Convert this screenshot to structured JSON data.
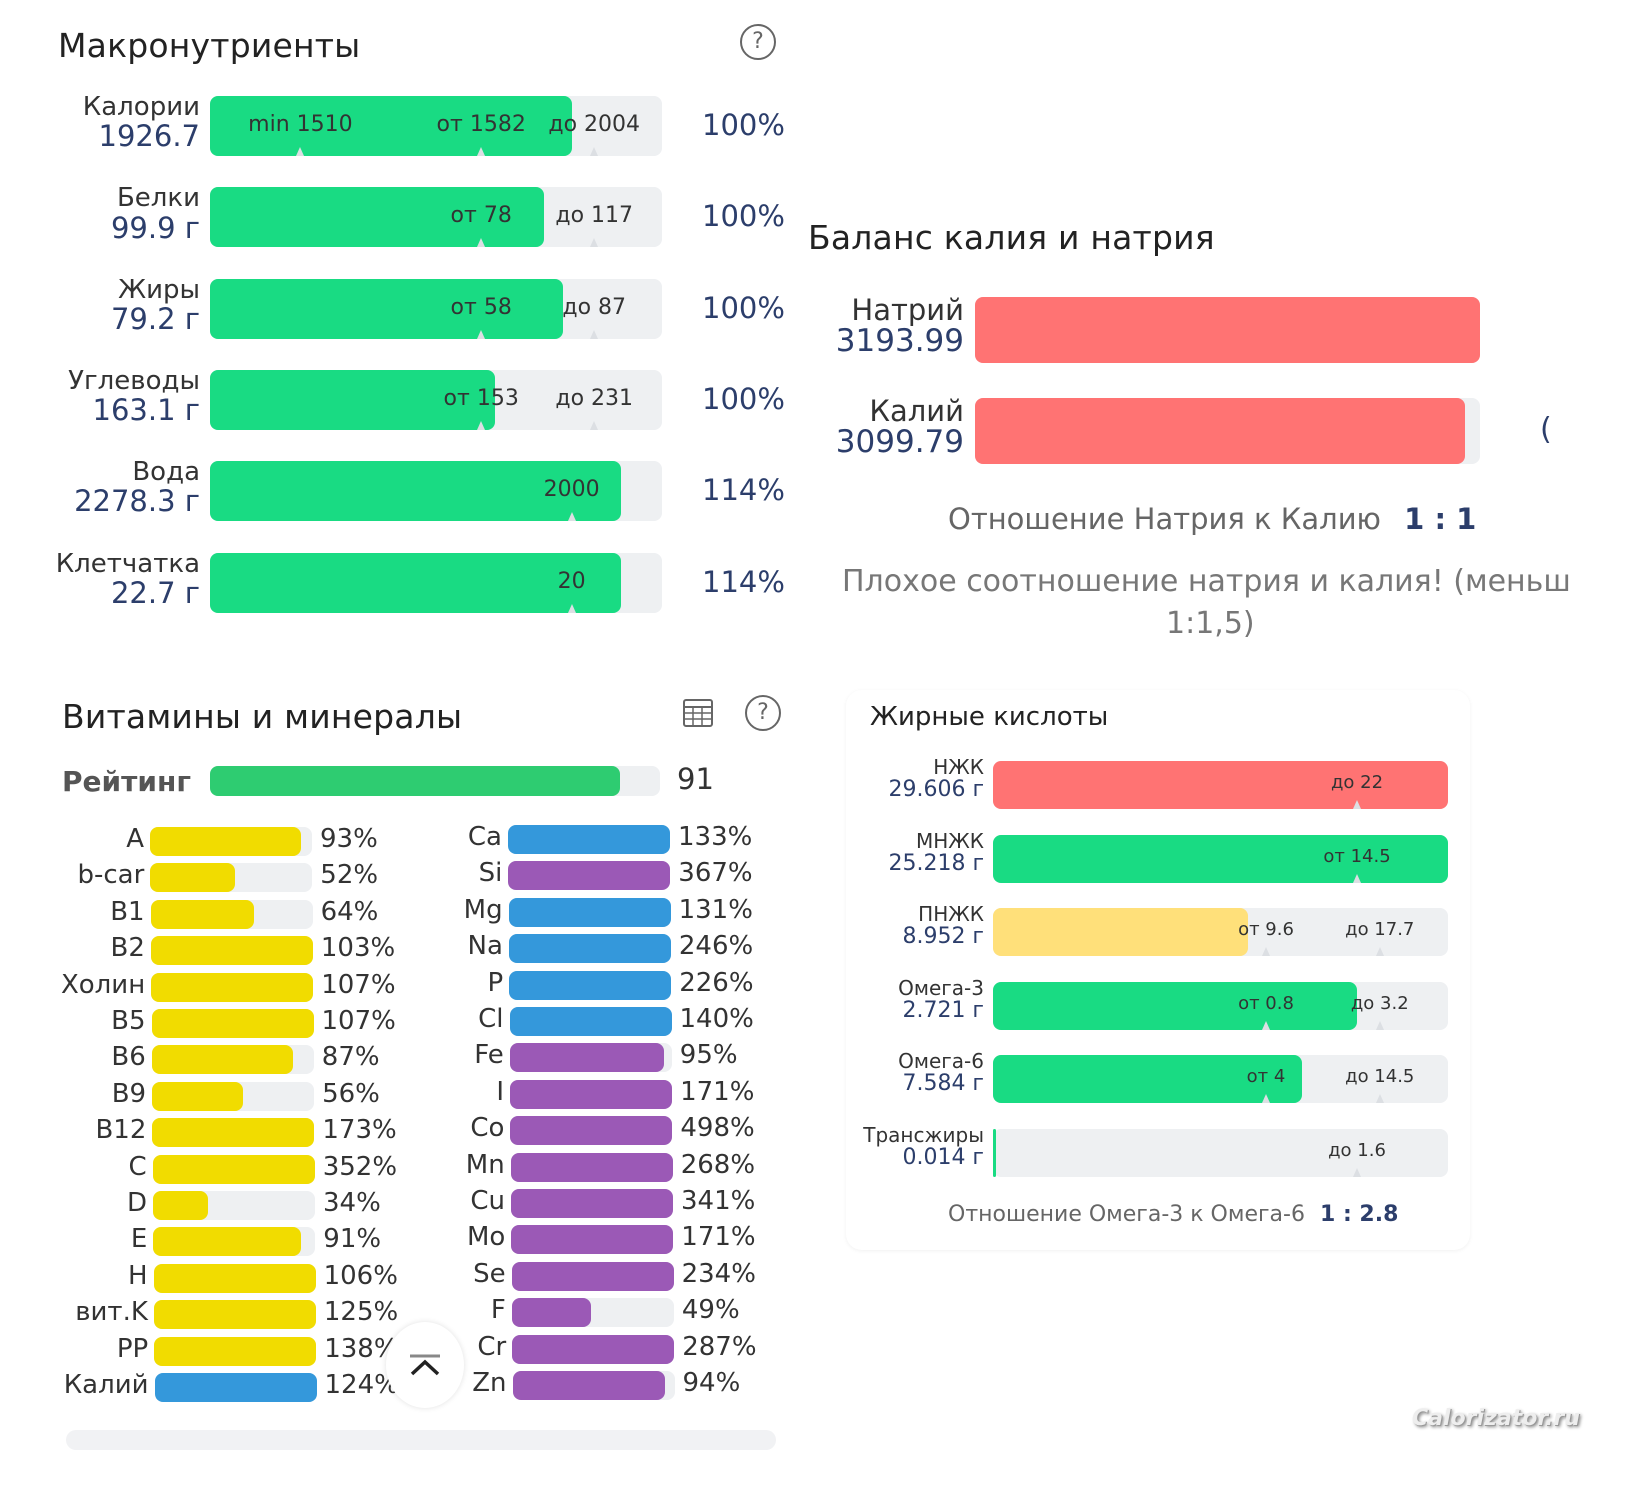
{
  "macros": {
    "title": "Макронутриенты",
    "help_icon": "question-circle-icon",
    "rows": [
      {
        "name": "Калории",
        "value": "1926.7",
        "percent": "100%",
        "fill": 0.8,
        "color": "#19db83",
        "markers": [
          {
            "text": "min 1510",
            "pos": 0.2
          },
          {
            "text": "от 1582",
            "pos": 0.6
          },
          {
            "text": "до 2004",
            "pos": 0.85
          }
        ]
      },
      {
        "name": "Белки",
        "value": "99.9 г",
        "percent": "100%",
        "fill": 0.74,
        "color": "#19db83",
        "markers": [
          {
            "text": "от 78",
            "pos": 0.6
          },
          {
            "text": "до 117",
            "pos": 0.85
          }
        ]
      },
      {
        "name": "Жиры",
        "value": "79.2 г",
        "percent": "100%",
        "fill": 0.78,
        "color": "#19db83",
        "markers": [
          {
            "text": "от 58",
            "pos": 0.6
          },
          {
            "text": "до 87",
            "pos": 0.85
          }
        ]
      },
      {
        "name": "Углеводы",
        "value": "163.1 г",
        "percent": "100%",
        "fill": 0.63,
        "color": "#19db83",
        "markers": [
          {
            "text": "от 153",
            "pos": 0.6
          },
          {
            "text": "до 231",
            "pos": 0.85
          }
        ]
      },
      {
        "name": "Вода",
        "value": "2278.3 г",
        "percent": "114%",
        "fill": 0.91,
        "color": "#19db83",
        "markers": [
          {
            "text": "2000",
            "pos": 0.8
          }
        ]
      },
      {
        "name": "Клетчатка",
        "value": "22.7 г",
        "percent": "114%",
        "fill": 0.91,
        "color": "#19db83",
        "markers": [
          {
            "text": "20",
            "pos": 0.8
          }
        ]
      }
    ]
  },
  "balance": {
    "title": "Баланс калия и натрия",
    "rows": [
      {
        "name": "Натрий",
        "value": "3193.99",
        "fill": 1.0,
        "color": "#ff7373"
      },
      {
        "name": "Калий",
        "value": "3099.79",
        "fill": 0.97,
        "color": "#ff7373"
      }
    ],
    "ratio_label": "Отношение Натрия к Калию",
    "ratio_value": "1 : 1",
    "warning_line1": "Плохое соотношение натрия и калия! (меньш",
    "warning_line2": "1:1,5)",
    "edge_fragment": "("
  },
  "vitamins": {
    "title": "Витамины и минералы",
    "table_icon": "table-icon",
    "help_icon": "question-circle-icon",
    "rating_label": "Рейтинг",
    "rating_value": "91",
    "rating_fill": 0.91,
    "rating_color": "#2ecc71",
    "left": [
      {
        "name": "A",
        "percent": "93%",
        "fill": 0.93,
        "color": "#f1dc00"
      },
      {
        "name": "b-car",
        "percent": "52%",
        "fill": 0.52,
        "color": "#f1dc00"
      },
      {
        "name": "B1",
        "percent": "64%",
        "fill": 0.64,
        "color": "#f1dc00"
      },
      {
        "name": "B2",
        "percent": "103%",
        "fill": 1.0,
        "color": "#f1dc00"
      },
      {
        "name": "Холин",
        "percent": "107%",
        "fill": 1.0,
        "color": "#f1dc00"
      },
      {
        "name": "B5",
        "percent": "107%",
        "fill": 1.0,
        "color": "#f1dc00"
      },
      {
        "name": "B6",
        "percent": "87%",
        "fill": 0.87,
        "color": "#f1dc00"
      },
      {
        "name": "B9",
        "percent": "56%",
        "fill": 0.56,
        "color": "#f1dc00"
      },
      {
        "name": "B12",
        "percent": "173%",
        "fill": 1.0,
        "color": "#f1dc00"
      },
      {
        "name": "C",
        "percent": "352%",
        "fill": 1.0,
        "color": "#f1dc00"
      },
      {
        "name": "D",
        "percent": "34%",
        "fill": 0.34,
        "color": "#f1dc00"
      },
      {
        "name": "E",
        "percent": "91%",
        "fill": 0.91,
        "color": "#f1dc00"
      },
      {
        "name": "H",
        "percent": "106%",
        "fill": 1.0,
        "color": "#f1dc00"
      },
      {
        "name": "вит.K",
        "percent": "125%",
        "fill": 1.0,
        "color": "#f1dc00"
      },
      {
        "name": "PP",
        "percent": "138%",
        "fill": 1.0,
        "color": "#f1dc00"
      },
      {
        "name": "Калий",
        "percent": "124%",
        "fill": 1.0,
        "color": "#3498db"
      }
    ],
    "right": [
      {
        "name": "Ca",
        "percent": "133%",
        "fill": 1.0,
        "color": "#3498db"
      },
      {
        "name": "Si",
        "percent": "367%",
        "fill": 1.0,
        "color": "#9b59b6"
      },
      {
        "name": "Mg",
        "percent": "131%",
        "fill": 1.0,
        "color": "#3498db"
      },
      {
        "name": "Na",
        "percent": "246%",
        "fill": 1.0,
        "color": "#3498db"
      },
      {
        "name": "P",
        "percent": "226%",
        "fill": 1.0,
        "color": "#3498db"
      },
      {
        "name": "Cl",
        "percent": "140%",
        "fill": 1.0,
        "color": "#3498db"
      },
      {
        "name": "Fe",
        "percent": "95%",
        "fill": 0.95,
        "color": "#9b59b6"
      },
      {
        "name": "I",
        "percent": "171%",
        "fill": 1.0,
        "color": "#9b59b6"
      },
      {
        "name": "Co",
        "percent": "498%",
        "fill": 1.0,
        "color": "#9b59b6"
      },
      {
        "name": "Mn",
        "percent": "268%",
        "fill": 1.0,
        "color": "#9b59b6"
      },
      {
        "name": "Cu",
        "percent": "341%",
        "fill": 1.0,
        "color": "#9b59b6"
      },
      {
        "name": "Mo",
        "percent": "171%",
        "fill": 1.0,
        "color": "#9b59b6"
      },
      {
        "name": "Se",
        "percent": "234%",
        "fill": 1.0,
        "color": "#9b59b6"
      },
      {
        "name": "F",
        "percent": "49%",
        "fill": 0.49,
        "color": "#9b59b6"
      },
      {
        "name": "Cr",
        "percent": "287%",
        "fill": 1.0,
        "color": "#9b59b6"
      },
      {
        "name": "Zn",
        "percent": "94%",
        "fill": 0.94,
        "color": "#9b59b6"
      }
    ],
    "scroll_top_icon": "chevron-up-bar-icon"
  },
  "fatty_acids": {
    "title": "Жирные кислоты",
    "rows": [
      {
        "name": "НЖК",
        "value": "29.606 г",
        "fill": 1.0,
        "color": "#ff7373",
        "markers": [
          {
            "text": "до 22",
            "pos": 0.8
          }
        ]
      },
      {
        "name": "МНЖК",
        "value": "25.218 г",
        "fill": 1.0,
        "color": "#19db83",
        "markers": [
          {
            "text": "от 14.5",
            "pos": 0.8
          }
        ]
      },
      {
        "name": "ПНЖК",
        "value": "8.952 г",
        "fill": 0.56,
        "color": "#ffe07a",
        "markers": [
          {
            "text": "от 9.6",
            "pos": 0.6
          },
          {
            "text": "до 17.7",
            "pos": 0.85
          }
        ]
      },
      {
        "name": "Омега-3",
        "value": "2.721 г",
        "fill": 0.8,
        "color": "#19db83",
        "markers": [
          {
            "text": "от 0.8",
            "pos": 0.6
          },
          {
            "text": "до 3.2",
            "pos": 0.85
          }
        ]
      },
      {
        "name": "Омега-6",
        "value": "7.584 г",
        "fill": 0.68,
        "color": "#19db83",
        "markers": [
          {
            "text": "от 4",
            "pos": 0.6
          },
          {
            "text": "до 14.5",
            "pos": 0.85
          }
        ]
      },
      {
        "name": "Трансжиры",
        "value": "0.014 г",
        "fill": 0.005,
        "color": "#19db83",
        "markers": [
          {
            "text": "до 1.6",
            "pos": 0.8
          }
        ]
      }
    ],
    "ratio_label": "Отношение Омега-3 к Омега-6",
    "ratio_value": "1 : 2.8"
  },
  "watermark": "Calorizator.ru",
  "chart_data": [
    {
      "type": "bar",
      "title": "Макронутриенты",
      "orientation": "horizontal",
      "categories": [
        "Калории",
        "Белки",
        "Жиры",
        "Углеводы",
        "Вода",
        "Клетчатка"
      ],
      "values": [
        1926.7,
        99.9,
        79.2,
        163.1,
        2278.3,
        22.7
      ],
      "units": [
        "",
        "г",
        "г",
        "г",
        "г",
        "г"
      ],
      "percent_of_norm": [
        100,
        100,
        100,
        100,
        114,
        114
      ],
      "ranges": [
        {
          "min": 1510,
          "from": 1582,
          "to": 2004
        },
        {
          "from": 78,
          "to": 117
        },
        {
          "from": 58,
          "to": 87
        },
        {
          "from": 153,
          "to": 231
        },
        {
          "target": 2000
        },
        {
          "target": 20
        }
      ]
    },
    {
      "type": "bar",
      "title": "Баланс калия и натрия",
      "orientation": "horizontal",
      "categories": [
        "Натрий",
        "Калий"
      ],
      "values": [
        3193.99,
        3099.79
      ],
      "annotations": [
        "Отношение Натрия к Калию 1 : 1",
        "Плохое соотношение натрия и калия! (меньш 1:1,5)"
      ]
    },
    {
      "type": "bar",
      "title": "Витамины и минералы",
      "orientation": "horizontal",
      "units": "% of norm",
      "rating": 91,
      "series": [
        {
          "name": "Витамины",
          "categories": [
            "A",
            "b-car",
            "B1",
            "B2",
            "Холин",
            "B5",
            "B6",
            "B9",
            "B12",
            "C",
            "D",
            "E",
            "H",
            "вит.K",
            "PP",
            "Калий"
          ],
          "values": [
            93,
            52,
            64,
            103,
            107,
            107,
            87,
            56,
            173,
            352,
            34,
            91,
            106,
            125,
            138,
            124
          ]
        },
        {
          "name": "Минералы",
          "categories": [
            "Ca",
            "Si",
            "Mg",
            "Na",
            "P",
            "Cl",
            "Fe",
            "I",
            "Co",
            "Mn",
            "Cu",
            "Mo",
            "Se",
            "F",
            "Cr",
            "Zn"
          ],
          "values": [
            133,
            367,
            131,
            246,
            226,
            140,
            95,
            171,
            498,
            268,
            341,
            171,
            234,
            49,
            287,
            94
          ]
        }
      ],
      "xlim": [
        0,
        100
      ]
    },
    {
      "type": "bar",
      "title": "Жирные кислоты",
      "orientation": "horizontal",
      "categories": [
        "НЖК",
        "МНЖК",
        "ПНЖК",
        "Омега-3",
        "Омега-6",
        "Трансжиры"
      ],
      "values": [
        29.606,
        25.218,
        8.952,
        2.721,
        7.584,
        0.014
      ],
      "units": "г",
      "ranges": [
        {
          "to": 22
        },
        {
          "from": 14.5
        },
        {
          "from": 9.6,
          "to": 17.7
        },
        {
          "from": 0.8,
          "to": 3.2
        },
        {
          "from": 4,
          "to": 14.5
        },
        {
          "to": 1.6
        }
      ],
      "annotations": [
        "Отношение Омега-3 к Омега-6 1 : 2.8"
      ]
    }
  ]
}
